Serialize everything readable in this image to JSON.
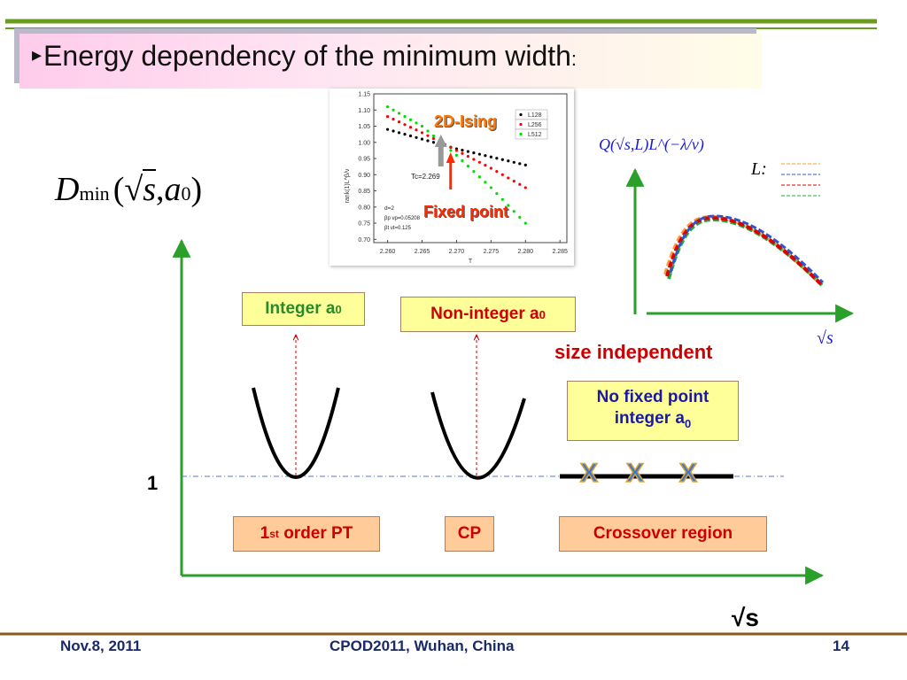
{
  "slide": {
    "title": "Energy dependency of the minimum width",
    "title_colon": ":",
    "footer_date": "Nov.8, 2011",
    "footer_conf": "CPOD2011, Wuhan, China",
    "page_number": "14"
  },
  "formula": {
    "main": "D",
    "sub": "min",
    "open": "(",
    "root": "√",
    "arg": "s",
    "comma": ",",
    "a": "a",
    "a_sub": "0",
    "close": ")"
  },
  "diagram": {
    "y_tick": "1",
    "x_label": "√s",
    "label_integer": "Integer a",
    "label_integer_sub": "0",
    "label_noninteger": "Non-integer a",
    "label_noninteger_sub": "0",
    "size_independent": "size independent",
    "nofixed_line1": "No fixed point",
    "nofixed_line2": "integer a",
    "nofixed_sub": "0",
    "label_first_order": "1",
    "label_first_order_sup": "st",
    "label_first_order_rest": " order PT",
    "label_cp": "CP",
    "label_crossover": "Crossover region",
    "crossover_marker": "X"
  },
  "ising_inset": {
    "title": "2D-Ising",
    "fixed_point": "Fixed point",
    "tc_label": "Tc=2.269",
    "ylabel": "rank(1)L^β/ν",
    "xlabel": "T",
    "d_label": "d=2",
    "beta_p": "βp νp=0.05208",
    "beta_t": "βt νt=0.125",
    "legend": [
      "L128",
      "L256",
      "L512"
    ],
    "y_ticks": [
      "1.15",
      "1.10",
      "1.05",
      "1.00",
      "0.95",
      "0.90",
      "0.85",
      "0.80",
      "0.75",
      "0.70"
    ],
    "x_ticks": [
      "2.260",
      "2.265",
      "2.270",
      "2.275",
      "2.280",
      "2.285"
    ],
    "colors": {
      "L128": "#000000",
      "L256": "#ff0000",
      "L512": "#00dd00"
    }
  },
  "scaling_inset": {
    "ylabel": "Q(√s,L)L^(−λ/ν)",
    "legend_title": "L:",
    "xlabel": "√s",
    "legend_colors": [
      "#ff9933",
      "#3355cc",
      "#dd0000",
      "#22aa44"
    ]
  },
  "chart_data": [
    {
      "type": "scatter",
      "title": "2D-Ising",
      "xlabel": "T",
      "ylabel": "rank(1)L^β/ν",
      "xlim": [
        2.258,
        2.286
      ],
      "ylim": [
        0.69,
        1.15
      ],
      "series": [
        {
          "name": "L128",
          "x": [
            2.26,
            2.265,
            2.27,
            2.275,
            2.28
          ],
          "y": [
            1.04,
            1.01,
            0.98,
            0.955,
            0.93
          ]
        },
        {
          "name": "L256",
          "x": [
            2.26,
            2.265,
            2.27,
            2.275,
            2.28
          ],
          "y": [
            1.08,
            1.03,
            0.975,
            0.92,
            0.86
          ]
        },
        {
          "name": "L512",
          "x": [
            2.26,
            2.265,
            2.27,
            2.275,
            2.28
          ],
          "y": [
            1.11,
            1.05,
            0.96,
            0.86,
            0.75
          ]
        }
      ]
    }
  ]
}
